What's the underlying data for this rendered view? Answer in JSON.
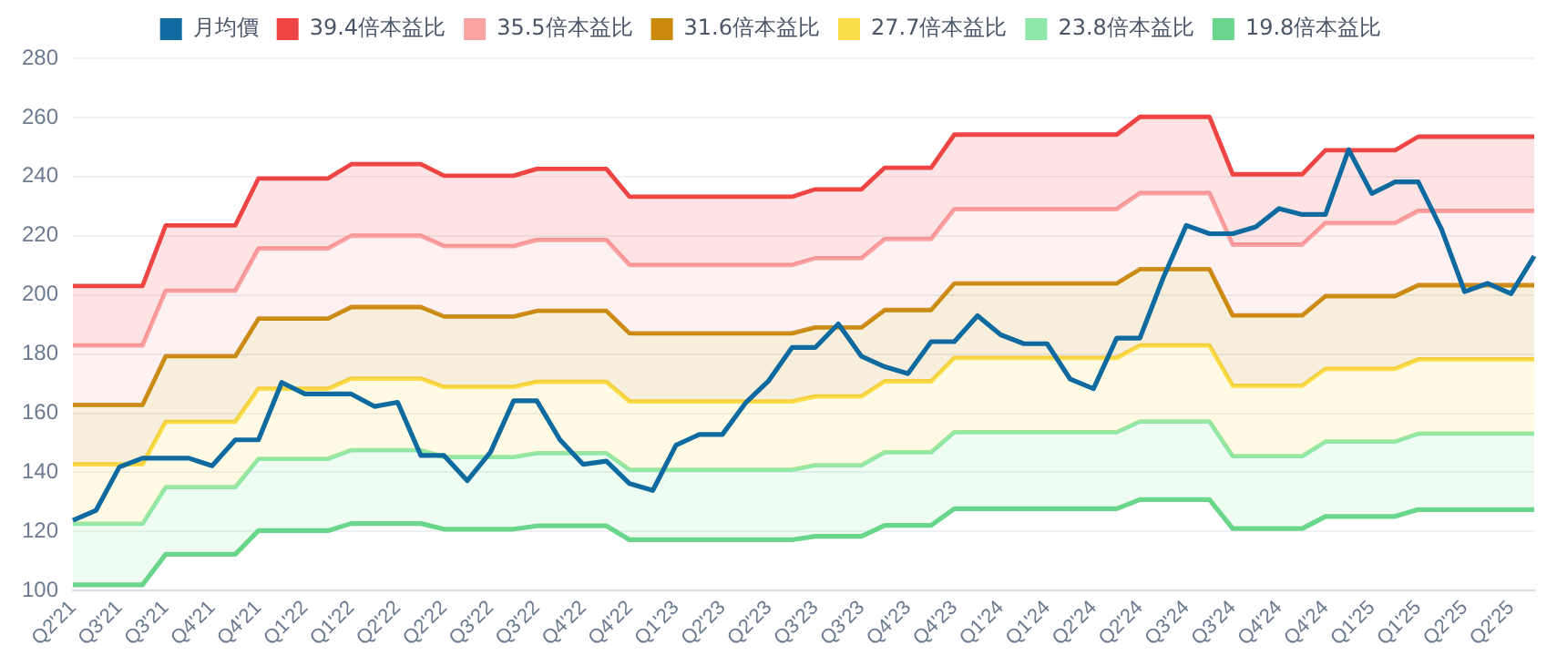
{
  "chart_data": {
    "type": "line",
    "categories": [
      "Q2'21",
      null,
      "Q3'21",
      null,
      "Q3'21",
      null,
      "Q4'21",
      null,
      "Q4'21",
      null,
      "Q1'22",
      null,
      "Q1'22",
      null,
      "Q2'22",
      null,
      "Q2'22",
      null,
      "Q3'22",
      null,
      "Q3'22",
      null,
      "Q4'22",
      null,
      "Q4'22",
      null,
      "Q1'23",
      null,
      "Q2'23",
      null,
      "Q2'23",
      null,
      "Q3'23",
      null,
      "Q3'23",
      null,
      "Q4'23",
      null,
      "Q4'23",
      null,
      "Q1'24",
      null,
      "Q1'24",
      null,
      "Q2'24",
      null,
      "Q2'24",
      null,
      "Q3'24",
      null,
      "Q3'24",
      null,
      "Q4'24",
      null,
      "Q4'24",
      null,
      "Q1'25",
      null,
      "Q1'25",
      null,
      "Q2'25",
      null,
      "Q2'25",
      null
    ],
    "series": [
      {
        "name": "月均價",
        "type": "line",
        "color": "#0f6aa0",
        "values": [
          123.8,
          127.2,
          141.8,
          144.8,
          144.8,
          144.8,
          142.2,
          151,
          151,
          170.4,
          166.5,
          166.5,
          166.5,
          162.3,
          163.7,
          145.7,
          145.7,
          137.2,
          146.8,
          164.2,
          164.2,
          151,
          142.7,
          143.8,
          136.2,
          133.9,
          149.2,
          152.8,
          152.8,
          163.5,
          171,
          182.2,
          182.2,
          190.2,
          179.2,
          175.7,
          173.4,
          184.2,
          184.2,
          193,
          186.5,
          183.5,
          183.5,
          171.5,
          168.3,
          185.4,
          185.4,
          205.7,
          223.5,
          220.7,
          220.7,
          223,
          229.2,
          227.2,
          227.2,
          249.1,
          234.3,
          238.2,
          238.2,
          222.3,
          201.1,
          203.9,
          200.4,
          213.1
        ]
      },
      {
        "name": "39.4倍本益比",
        "type": "area",
        "color": "#ef4444",
        "values": [
          203,
          203,
          203,
          203,
          223.5,
          223.5,
          223.5,
          223.5,
          239.4,
          239.4,
          239.4,
          239.4,
          244.2,
          244.2,
          244.2,
          244.2,
          240.3,
          240.3,
          240.3,
          240.3,
          242.6,
          242.6,
          242.6,
          242.6,
          233.2,
          233.2,
          233.2,
          233.2,
          233.2,
          233.2,
          233.2,
          233.2,
          235.7,
          235.7,
          235.7,
          243,
          243,
          243,
          254.2,
          254.2,
          254.2,
          254.2,
          254.2,
          254.2,
          254.2,
          254.2,
          260.2,
          260.2,
          260.2,
          260.2,
          240.8,
          240.8,
          240.8,
          240.8,
          248.9,
          248.9,
          248.9,
          248.9,
          253.5,
          253.5,
          253.5,
          253.5,
          253.5,
          253.5
        ]
      },
      {
        "name": "35.5倍本益比",
        "type": "area",
        "color": "#f9a3a3",
        "values": [
          182.9,
          182.9,
          182.9,
          182.9,
          201.4,
          201.4,
          201.4,
          201.4,
          215.7,
          215.7,
          215.7,
          215.7,
          220,
          220,
          220,
          220,
          216.5,
          216.5,
          216.5,
          216.5,
          218.6,
          218.6,
          218.6,
          218.6,
          210.1,
          210.1,
          210.1,
          210.1,
          210.1,
          210.1,
          210.1,
          210.1,
          212.4,
          212.4,
          212.4,
          218.9,
          218.9,
          218.9,
          229,
          229,
          229,
          229,
          229,
          229,
          229,
          229,
          234.4,
          234.4,
          234.4,
          234.4,
          217,
          217,
          217,
          217,
          224.3,
          224.3,
          224.3,
          224.3,
          228.4,
          228.4,
          228.4,
          228.4,
          228.4,
          228.4
        ]
      },
      {
        "name": "31.6倍本益比",
        "type": "area",
        "color": "#c98a0c",
        "values": [
          162.8,
          162.8,
          162.8,
          162.8,
          179.3,
          179.3,
          179.3,
          179.3,
          192,
          192,
          192,
          192,
          195.9,
          195.9,
          195.9,
          195.9,
          192.7,
          192.7,
          192.7,
          192.7,
          194.6,
          194.6,
          194.6,
          194.6,
          187,
          187,
          187,
          187,
          187,
          187,
          187,
          187,
          189,
          189,
          189,
          194.9,
          194.9,
          194.9,
          203.9,
          203.9,
          203.9,
          203.9,
          203.9,
          203.9,
          203.9,
          203.9,
          208.7,
          208.7,
          208.7,
          208.7,
          193.1,
          193.1,
          193.1,
          193.1,
          199.6,
          199.6,
          199.6,
          199.6,
          203.3,
          203.3,
          203.3,
          203.3,
          203.3,
          203.3
        ]
      },
      {
        "name": "27.7倍本益比",
        "type": "area",
        "color": "#fcdc48",
        "values": [
          142.7,
          142.7,
          142.7,
          142.7,
          157.1,
          157.1,
          157.1,
          157.1,
          168.3,
          168.3,
          168.3,
          168.3,
          171.7,
          171.7,
          171.7,
          171.7,
          168.9,
          168.9,
          168.9,
          168.9,
          170.6,
          170.6,
          170.6,
          170.6,
          164,
          164,
          164,
          164,
          164,
          164,
          164,
          164,
          165.7,
          165.7,
          165.7,
          170.8,
          170.8,
          170.8,
          178.7,
          178.7,
          178.7,
          178.7,
          178.7,
          178.7,
          178.7,
          178.7,
          182.9,
          182.9,
          182.9,
          182.9,
          169.3,
          169.3,
          169.3,
          169.3,
          175,
          175,
          175,
          175,
          178.2,
          178.2,
          178.2,
          178.2,
          178.2,
          178.2
        ]
      },
      {
        "name": "23.8倍本益比",
        "type": "area",
        "color": "#8ee8aa",
        "values": [
          122.6,
          122.6,
          122.6,
          122.6,
          135,
          135,
          135,
          135,
          144.6,
          144.6,
          144.6,
          144.6,
          147.5,
          147.5,
          147.5,
          147.5,
          145.2,
          145.2,
          145.2,
          145.2,
          146.5,
          146.5,
          146.5,
          146.5,
          140.9,
          140.9,
          140.9,
          140.9,
          140.9,
          140.9,
          140.9,
          140.9,
          142.4,
          142.4,
          142.4,
          146.8,
          146.8,
          146.8,
          153.6,
          153.6,
          153.6,
          153.6,
          153.6,
          153.6,
          153.6,
          153.6,
          157.2,
          157.2,
          157.2,
          157.2,
          145.5,
          145.5,
          145.5,
          145.5,
          150.4,
          150.4,
          150.4,
          150.4,
          153.1,
          153.1,
          153.1,
          153.1,
          153.1,
          153.1
        ]
      },
      {
        "name": "19.8倍本益比",
        "type": "line",
        "color": "#6ad68c",
        "values": [
          102,
          102,
          102,
          102,
          112.3,
          112.3,
          112.3,
          112.3,
          120.3,
          120.3,
          120.3,
          120.3,
          122.7,
          122.7,
          122.7,
          122.7,
          120.8,
          120.8,
          120.8,
          120.8,
          121.9,
          121.9,
          121.9,
          121.9,
          117.2,
          117.2,
          117.2,
          117.2,
          117.2,
          117.2,
          117.2,
          117.2,
          118.4,
          118.4,
          118.4,
          122.1,
          122.1,
          122.1,
          127.7,
          127.7,
          127.7,
          127.7,
          127.7,
          127.7,
          127.7,
          127.7,
          130.8,
          130.8,
          130.8,
          130.8,
          121,
          121,
          121,
          121,
          125.1,
          125.1,
          125.1,
          125.1,
          127.4,
          127.4,
          127.4,
          127.4,
          127.4,
          127.4
        ]
      }
    ],
    "ylim": [
      100,
      280
    ],
    "yticks": [
      100,
      120,
      140,
      160,
      180,
      200,
      220,
      240,
      260,
      280
    ],
    "grid": "y",
    "legend": "top",
    "marker": "none"
  }
}
